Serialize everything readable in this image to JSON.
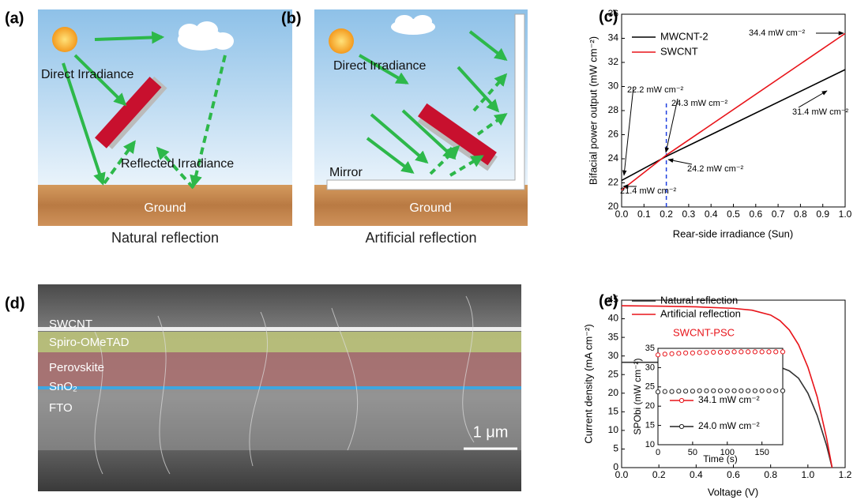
{
  "panels": {
    "a": {
      "label": "(a)",
      "direct": "Direct Irradiance",
      "reflected": "Reflected Irradiance",
      "ground": "Ground",
      "caption": "Natural reflection"
    },
    "b": {
      "label": "(b)",
      "direct": "Direct Irradiance",
      "mirror": "Mirror",
      "ground": "Ground",
      "caption": "Artificial reflection"
    },
    "d": {
      "label": "(d)",
      "layers": [
        "SWCNT",
        "Spiro-OMeTAD",
        "Perovskite",
        "SnO₂",
        "FTO"
      ],
      "scale_bar": "1 μm"
    }
  },
  "chart_data": [
    {
      "type": "line",
      "label": "(c)",
      "xlabel": "Rear-side irradiance (Sun)",
      "ylabel": "Bifacial power output (mW cm⁻²)",
      "x": [
        0,
        0.2,
        1
      ],
      "series": [
        {
          "name": "MWCNT-2",
          "color": "#000000",
          "values": [
            22.2,
            24.2,
            31.4
          ]
        },
        {
          "name": "SWCNT",
          "color": "#e8141a",
          "values": [
            21.4,
            24.3,
            34.4
          ]
        }
      ],
      "xlim": [
        0,
        1
      ],
      "ylim": [
        20,
        36
      ],
      "xticks": [
        {
          "value": 0,
          "label": "0.0"
        },
        0.1,
        0.2,
        0.3,
        0.4,
        0.5,
        0.6,
        0.7,
        0.8,
        0.9,
        {
          "value": 1,
          "label": "1.0"
        }
      ],
      "yticks": [
        20,
        22,
        24,
        26,
        28,
        30,
        32,
        34,
        36
      ],
      "vline": 0.2,
      "vline_color": "#1f3fe0",
      "annotations": [
        "34.4 mW cm⁻²",
        "22.2 mW cm⁻²",
        "24.3 mW cm⁻²",
        "31.4 mW cm⁻²",
        "24.2 mW cm⁻²",
        "21.4 mW cm⁻²"
      ]
    },
    {
      "type": "line",
      "label": "(e)",
      "xlabel": "Voltage (V)",
      "ylabel": "Current density (mA cm⁻²)",
      "note": "SWCNT-PSC",
      "note_color": "#e8141a",
      "x": [
        0,
        0.2,
        0.4,
        0.6,
        0.7,
        0.8,
        0.85,
        0.9,
        0.95,
        1.0,
        1.05,
        1.1,
        1.13
      ],
      "series": [
        {
          "name": "Natural reflection",
          "color": "#333333",
          "values": [
            28.3,
            28.3,
            28.2,
            28.1,
            27.9,
            27.5,
            27,
            26,
            24,
            20,
            14,
            6,
            0
          ]
        },
        {
          "name": "Artificial reflection",
          "color": "#e8141a",
          "values": [
            43.5,
            43.4,
            43.2,
            42.8,
            42.3,
            41,
            39.5,
            37,
            33,
            27,
            19,
            8,
            0
          ]
        }
      ],
      "xlim": [
        0,
        1.2
      ],
      "ylim": [
        0,
        45
      ],
      "xticks": [
        {
          "value": 0,
          "label": "0.0"
        },
        0.2,
        0.4,
        0.6,
        0.8,
        {
          "value": 1,
          "label": "1.0"
        },
        1.2
      ],
      "yticks": [
        0,
        5,
        10,
        15,
        20,
        25,
        30,
        35,
        40,
        45
      ]
    },
    {
      "type": "scatter",
      "xlabel": "Time (s)",
      "ylabel": "SPObi (mW cm⁻²)",
      "x": [
        0,
        10,
        20,
        30,
        40,
        50,
        60,
        70,
        80,
        90,
        100,
        110,
        120,
        130,
        140,
        150,
        160,
        170,
        180
      ],
      "series": [
        {
          "name": "34.1 mW cm⁻²",
          "color": "#e8141a",
          "values": [
            33.3,
            33.5,
            33.6,
            33.7,
            33.8,
            33.8,
            33.9,
            33.9,
            34.0,
            34.0,
            34.0,
            34.1,
            34.1,
            34.1,
            34.1,
            34.1,
            34.1,
            34.1,
            34.1
          ]
        },
        {
          "name": "24.0 mW cm⁻²",
          "color": "#222222",
          "values": [
            23.7,
            23.8,
            23.8,
            23.9,
            23.9,
            23.9,
            24.0,
            24.0,
            24.0,
            24.0,
            24.0,
            24.0,
            24.0,
            24.0,
            24.0,
            24.0,
            24.0,
            24.0,
            24.0
          ]
        }
      ],
      "xlim": [
        0,
        180
      ],
      "ylim": [
        10,
        35
      ],
      "xticks": [
        0,
        50,
        100,
        150
      ],
      "yticks": [
        10,
        15,
        20,
        25,
        30,
        35
      ]
    }
  ]
}
